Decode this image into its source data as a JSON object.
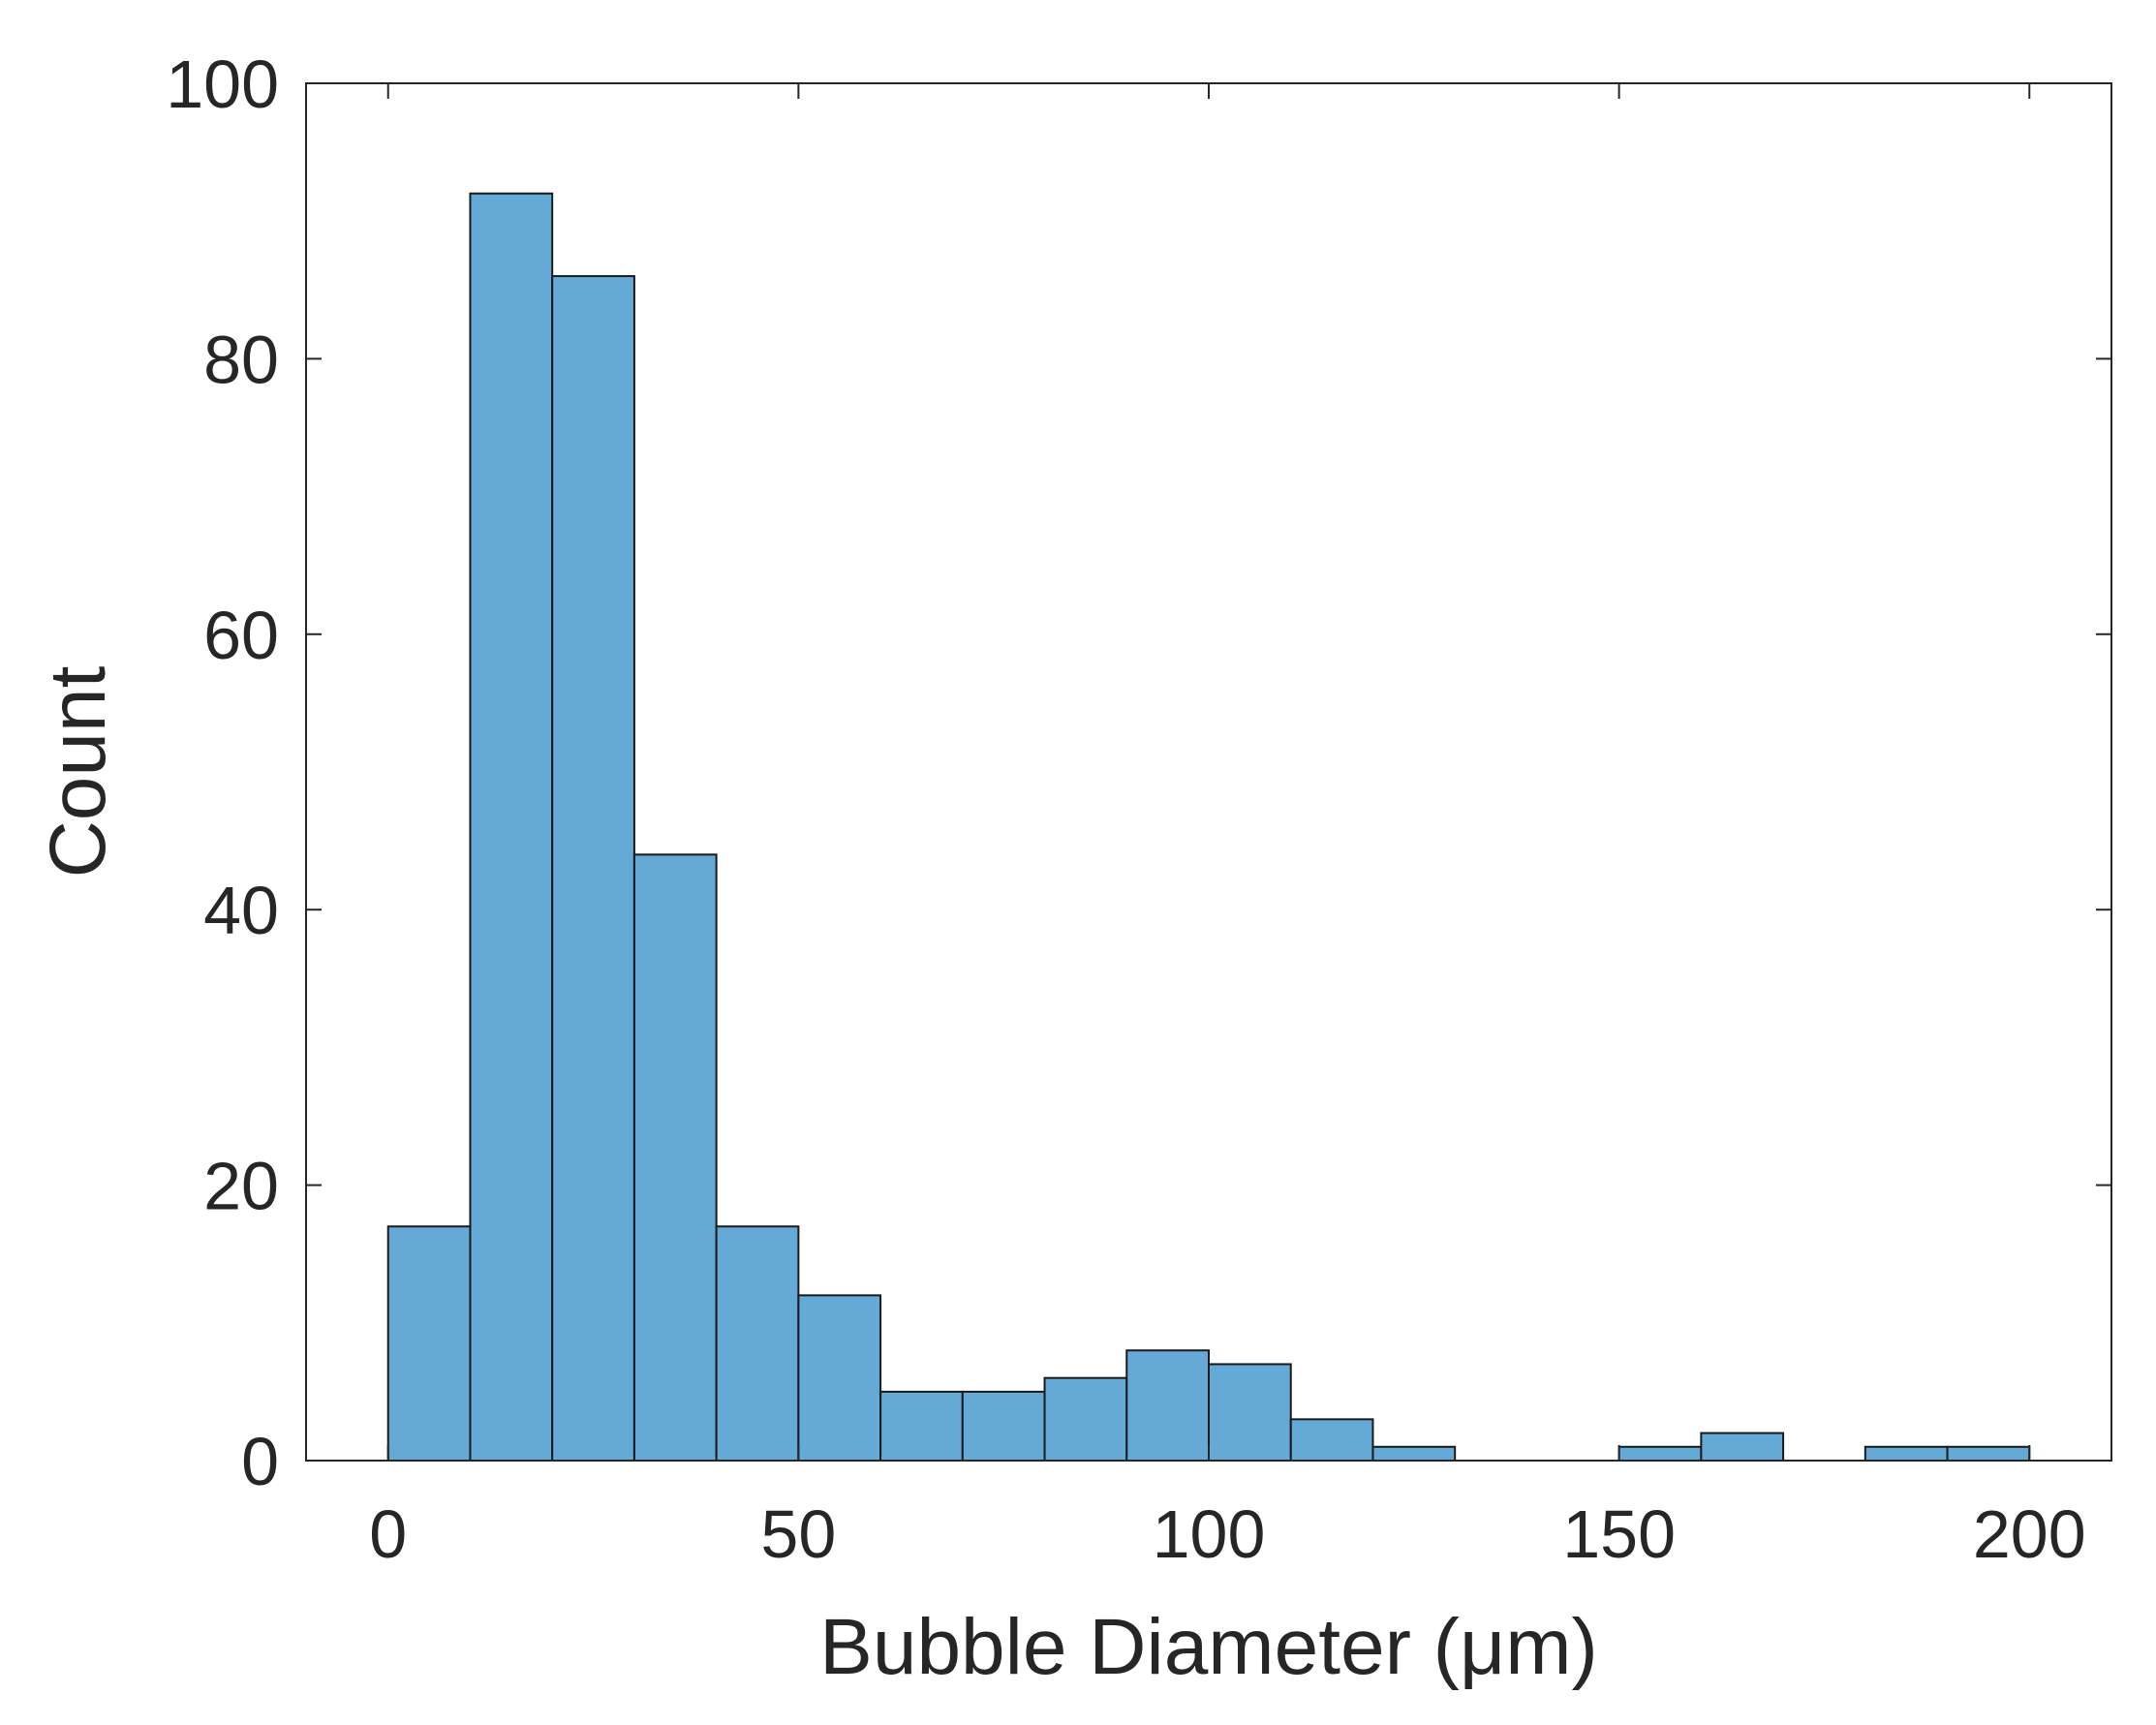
{
  "chart_data": {
    "type": "bar",
    "title": "",
    "xlabel": "Bubble Diameter (μm)",
    "ylabel": "Count",
    "xlim": [
      -10,
      210
    ],
    "ylim": [
      0,
      100
    ],
    "xticks": [
      0,
      50,
      100,
      150,
      200
    ],
    "yticks": [
      0,
      20,
      40,
      60,
      80,
      100
    ],
    "grid": false,
    "bar_color": "#65a9d7",
    "bin_edges": [
      0,
      10,
      20,
      30,
      40,
      50,
      60,
      70,
      80,
      90,
      100,
      110,
      120,
      130,
      140,
      150,
      160,
      170,
      180,
      190,
      200
    ],
    "values": [
      17,
      92,
      86,
      44,
      17,
      12,
      5,
      5,
      6,
      8,
      7,
      3,
      1,
      0,
      0,
      1,
      2,
      0,
      1,
      1
    ]
  }
}
